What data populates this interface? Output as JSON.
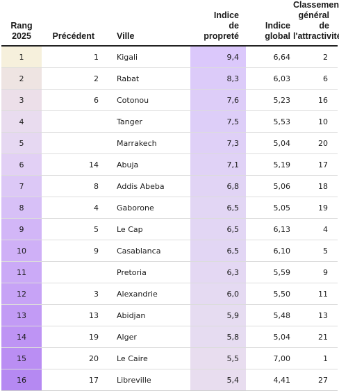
{
  "headers": {
    "rang": [
      "Rang",
      "2025"
    ],
    "precedent": "Précédent",
    "ville": "Ville",
    "indice_proprete": [
      "Indice",
      "de",
      "propreté"
    ],
    "indice_global": [
      "Indice",
      "global"
    ],
    "classement": [
      "Classement",
      "général de",
      "l'attractivité"
    ]
  },
  "colors": {
    "rang_gradient": [
      "#f6f0dc",
      "#eee4e2",
      "#ecdfe9",
      "#e9dcef",
      "#e6d8f2",
      "#e2d0f5",
      "#dcc8f6",
      "#d7c0f7",
      "#d2b6f7",
      "#cfb0f7",
      "#cbaaf7",
      "#c7a3f6",
      "#c29bf5",
      "#be94f4",
      "#ba8ef3",
      "#b589f2"
    ],
    "indice_gradient": [
      "#dbc8fb",
      "#dccbf9",
      "#ddcdf8",
      "#ddcef8",
      "#dfd0f7",
      "#e0d2f6",
      "#e1d4f5",
      "#e2d6f4",
      "#e2d6f4",
      "#e2d6f4",
      "#e4d8f3",
      "#e5daf2",
      "#e6dcf1",
      "#e6dcf1",
      "#e8ddef",
      "#e8ddef"
    ]
  },
  "rows": [
    {
      "rang": "1",
      "precedent": "1",
      "ville": "Kigali",
      "indice_proprete": "9,4",
      "indice_global": "6,64",
      "classement": "2"
    },
    {
      "rang": "2",
      "precedent": "2",
      "ville": "Rabat",
      "indice_proprete": "8,3",
      "indice_global": "6,03",
      "classement": "6"
    },
    {
      "rang": "3",
      "precedent": "6",
      "ville": "Cotonou",
      "indice_proprete": "7,6",
      "indice_global": "5,23",
      "classement": "16"
    },
    {
      "rang": "4",
      "precedent": "",
      "ville": "Tanger",
      "indice_proprete": "7,5",
      "indice_global": "5,53",
      "classement": "10"
    },
    {
      "rang": "5",
      "precedent": "",
      "ville": "Marrakech",
      "indice_proprete": "7,3",
      "indice_global": "5,04",
      "classement": "20"
    },
    {
      "rang": "6",
      "precedent": "14",
      "ville": "Abuja",
      "indice_proprete": "7,1",
      "indice_global": "5,19",
      "classement": "17"
    },
    {
      "rang": "7",
      "precedent": "8",
      "ville": "Addis Abeba",
      "indice_proprete": "6,8",
      "indice_global": "5,06",
      "classement": "18"
    },
    {
      "rang": "8",
      "precedent": "4",
      "ville": "Gaborone",
      "indice_proprete": "6,5",
      "indice_global": "5,05",
      "classement": "19"
    },
    {
      "rang": "9",
      "precedent": "5",
      "ville": "Le Cap",
      "indice_proprete": "6,5",
      "indice_global": "6,13",
      "classement": "4"
    },
    {
      "rang": "10",
      "precedent": "9",
      "ville": "Casablanca",
      "indice_proprete": "6,5",
      "indice_global": "6,10",
      "classement": "5"
    },
    {
      "rang": "11",
      "precedent": "",
      "ville": "Pretoria",
      "indice_proprete": "6,3",
      "indice_global": "5,59",
      "classement": "9"
    },
    {
      "rang": "12",
      "precedent": "3",
      "ville": "Alexandrie",
      "indice_proprete": "6,0",
      "indice_global": "5,50",
      "classement": "11"
    },
    {
      "rang": "13",
      "precedent": "13",
      "ville": "Abidjan",
      "indice_proprete": "5,9",
      "indice_global": "5,48",
      "classement": "13"
    },
    {
      "rang": "14",
      "precedent": "19",
      "ville": "Alger",
      "indice_proprete": "5,8",
      "indice_global": "5,04",
      "classement": "21"
    },
    {
      "rang": "15",
      "precedent": "20",
      "ville": "Le Caire",
      "indice_proprete": "5,5",
      "indice_global": "7,00",
      "classement": "1"
    },
    {
      "rang": "16",
      "precedent": "17",
      "ville": "Libreville",
      "indice_proprete": "5,4",
      "indice_global": "4,41",
      "classement": "27"
    }
  ]
}
